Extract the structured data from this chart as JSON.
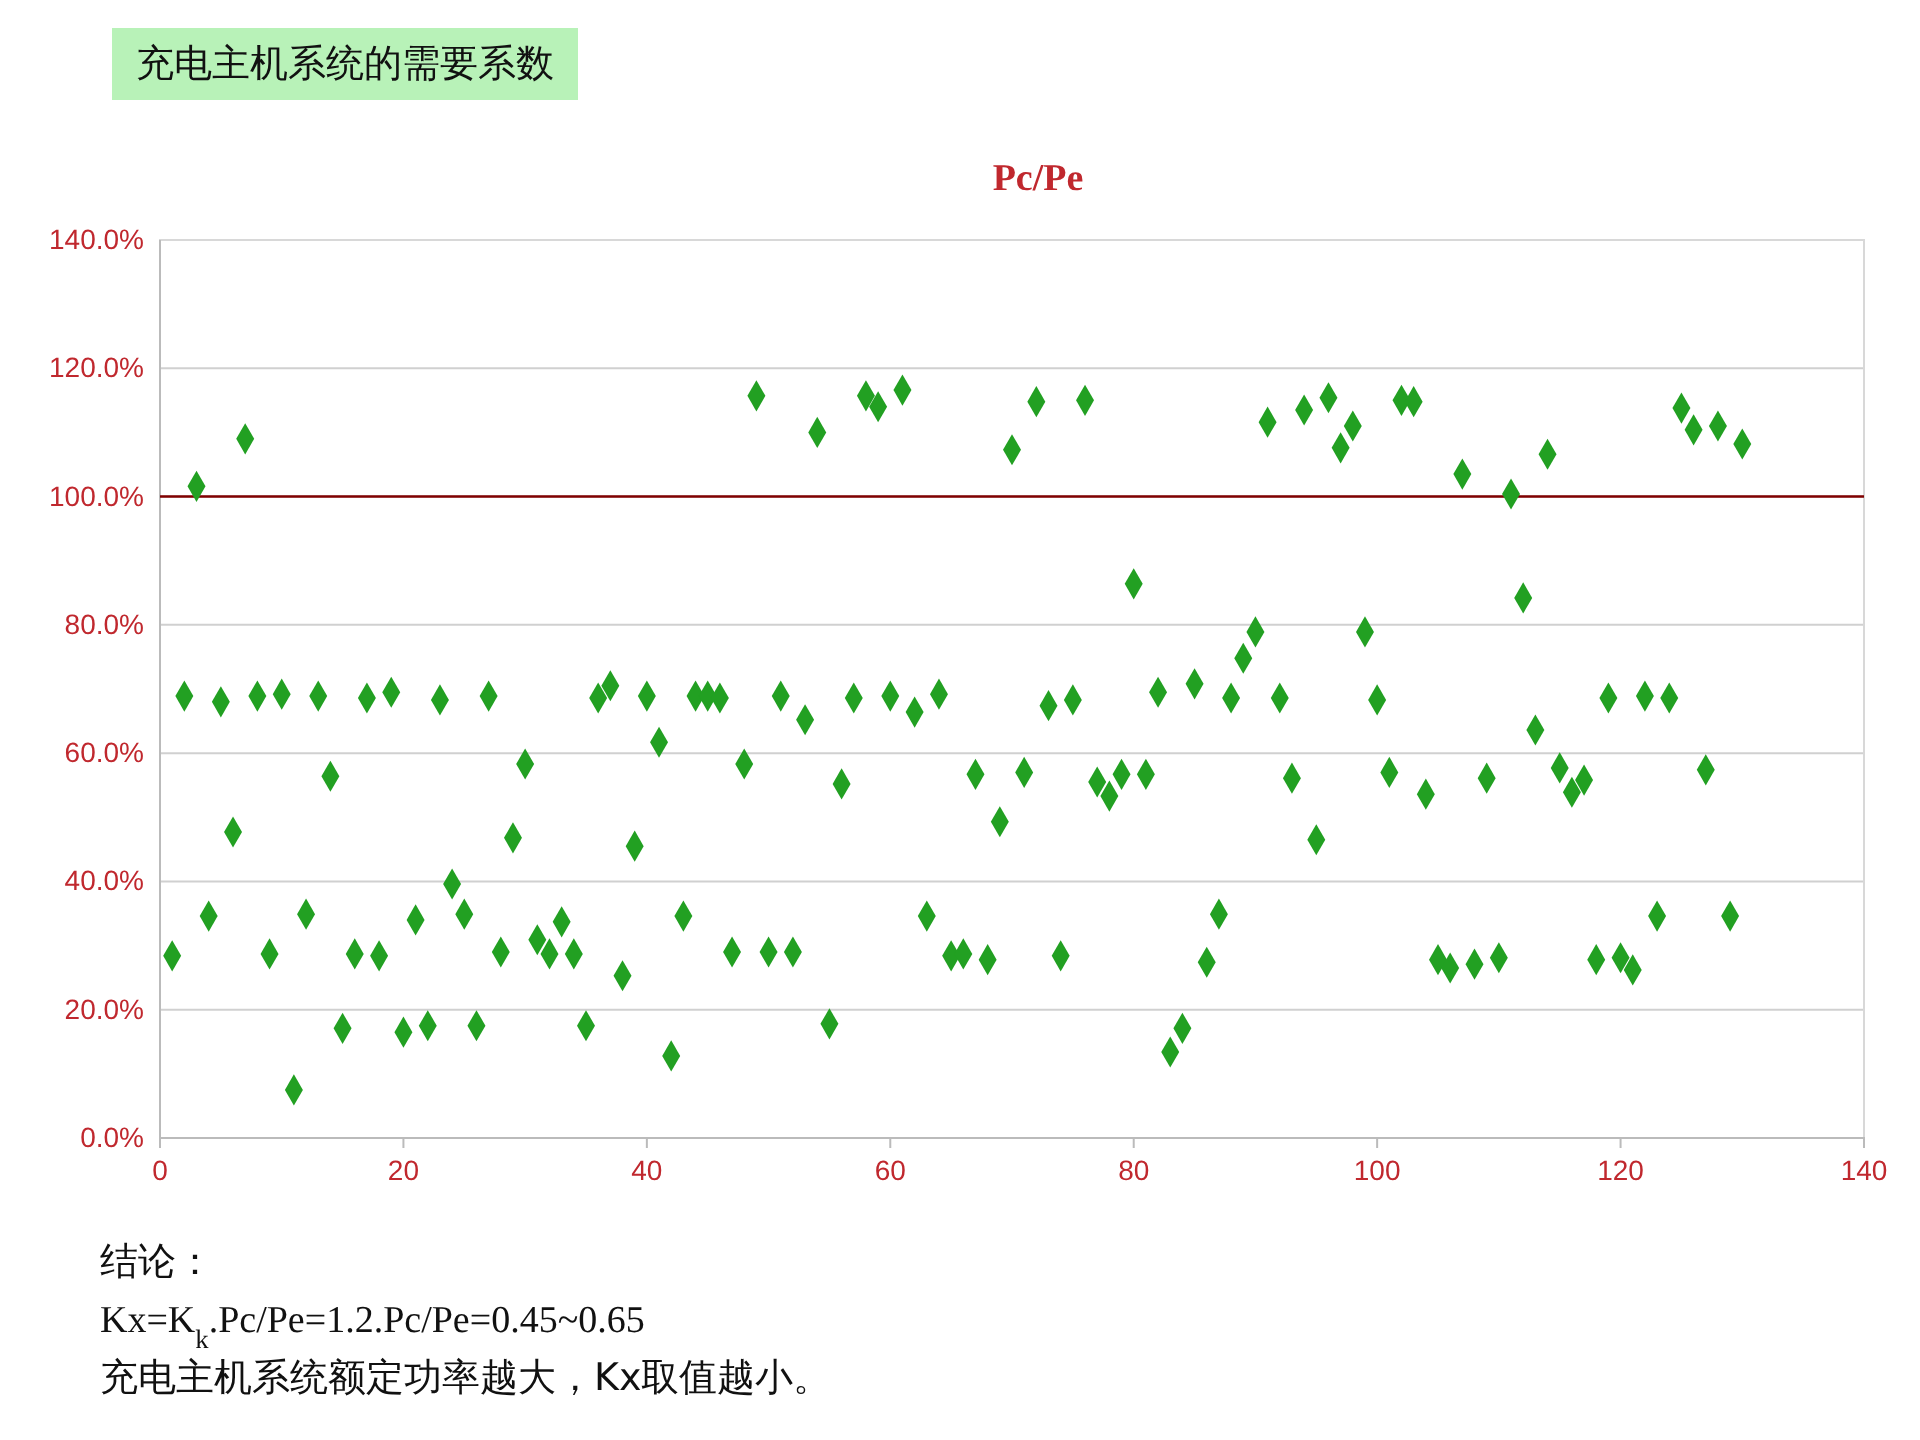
{
  "chart_data": {
    "type": "scatter",
    "title": "充电主机系统的需要系数",
    "subtitle": "Pc/Pe",
    "annotations": [
      "结论：",
      "Kx=K$_{k}$.Pc/Pe=1.2.Pc/Pe=0.45~0.65",
      "充电主机系统额定功率越大，Kx取值越小。"
    ],
    "x": [
      1,
      2,
      3,
      4,
      5,
      6,
      7,
      8,
      9,
      10,
      11,
      12,
      13,
      14,
      15,
      16,
      17,
      18,
      19,
      20,
      21,
      22,
      23,
      24,
      25,
      26,
      27,
      28,
      29,
      30,
      31,
      32,
      33,
      34,
      35,
      36,
      37,
      38,
      39,
      40,
      41,
      42,
      43,
      44,
      45,
      46,
      47,
      48,
      49,
      50,
      51,
      52,
      53,
      54,
      55,
      56,
      57,
      58,
      59,
      60,
      61,
      62,
      63,
      64,
      65,
      66,
      67,
      68,
      69,
      70,
      71,
      72,
      73,
      74,
      75,
      76,
      77,
      78,
      79,
      80,
      81,
      82,
      83,
      84,
      85,
      86,
      87,
      88,
      89,
      90,
      91,
      92,
      93,
      94,
      95,
      96,
      97,
      98,
      99,
      100,
      101,
      102,
      103,
      104,
      105,
      106,
      107,
      108,
      109,
      110,
      111,
      112,
      113,
      114,
      115,
      116,
      117,
      118,
      119,
      120,
      121,
      122,
      123,
      124,
      125,
      126,
      127,
      128,
      129,
      130
    ],
    "series": [
      {
        "color": "#22a022",
        "values": [
          28.4,
          68.9,
          101.6,
          34.6,
          68,
          47.7,
          109,
          68.9,
          28.7,
          69.2,
          7.5,
          34.9,
          68.9,
          56.4,
          17.1,
          28.7,
          68.6,
          28.4,
          69.5,
          16.5,
          34,
          17.5,
          68.3,
          39.6,
          34.9,
          17.5,
          68.9,
          29,
          46.8,
          58.3,
          30.9,
          28.7,
          33.7,
          28.7,
          17.5,
          68.6,
          70.5,
          25.3,
          45.5,
          68.9,
          61.7,
          12.8,
          34.6,
          68.9,
          68.9,
          68.6,
          29,
          58.3,
          115.7,
          29,
          68.9,
          29,
          65.2,
          110,
          17.8,
          55.2,
          68.6,
          115.7,
          114,
          68.9,
          116.6,
          66.4,
          34.6,
          69.2,
          28.4,
          28.7,
          56.7,
          27.8,
          49.3,
          107.3,
          57,
          114.8,
          67.4,
          28.4,
          68.3,
          115,
          55.5,
          53.3,
          56.7,
          86.4,
          56.7,
          69.5,
          13.4,
          17.1,
          70.8,
          27.4,
          34.9,
          68.6,
          74.8,
          78.9,
          111.6,
          68.6,
          56.1,
          113.5,
          46.5,
          115.4,
          107.6,
          111,
          78.9,
          68.3,
          57,
          115,
          114.8,
          53.6,
          27.8,
          26.5,
          103.5,
          27.1,
          56.1,
          28.1,
          100.4,
          84.2,
          63.6,
          106.6,
          57.7,
          53.9,
          55.8,
          27.8,
          68.6,
          28.1,
          26.2,
          68.9,
          34.6,
          68.6,
          113.8,
          110.4,
          57.4,
          111,
          34.6,
          108.2
        ]
      }
    ],
    "xlim": [
      0,
      140
    ],
    "xticks": [
      0,
      20,
      40,
      60,
      80,
      100,
      120,
      140
    ],
    "ylim": [
      0,
      140
    ],
    "yticks": [
      {
        "value": 0,
        "label": "0.0%"
      },
      {
        "value": 20,
        "label": "20.0%"
      },
      {
        "value": 40,
        "label": "40.0%"
      },
      {
        "value": 60,
        "label": "60.0%"
      },
      {
        "value": 80,
        "label": "80.0%"
      },
      {
        "value": 100,
        "label": "100.0%"
      },
      {
        "value": 120,
        "label": "120.0%"
      },
      {
        "value": 140,
        "label": "140.0%"
      }
    ],
    "ref_lines": [
      {
        "axis": "y",
        "value": 100,
        "color": "#800000"
      }
    ],
    "grid": "y",
    "marker": "diamond"
  }
}
